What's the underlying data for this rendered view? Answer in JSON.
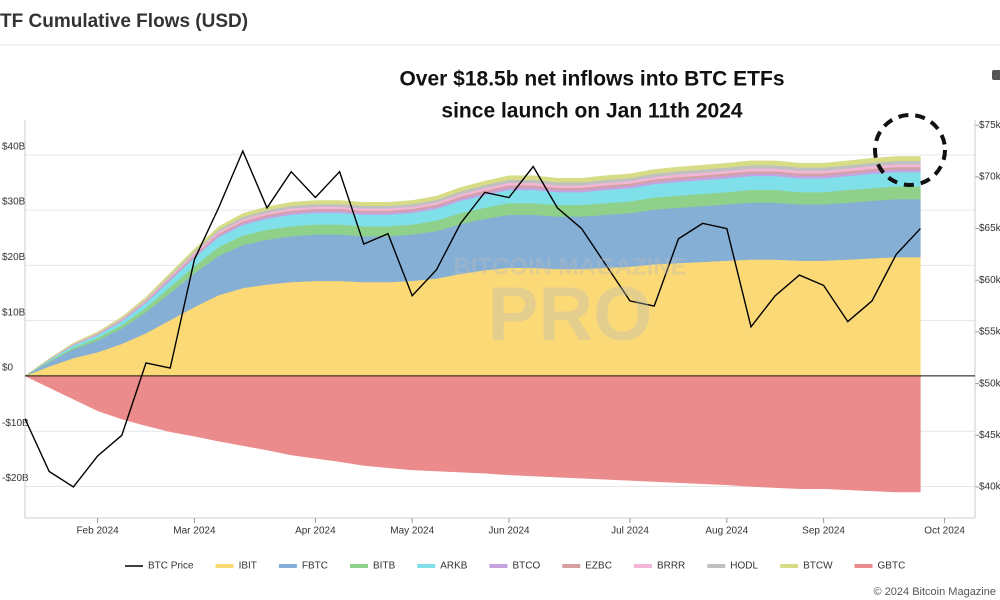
{
  "chart_data": {
    "type": "stacked_area",
    "title": "TF Cumulative Flows (USD)",
    "annotations": [
      "Over $18.5b net inflows into BTC ETFs",
      "since launch on Jan 11th 2024"
    ],
    "watermark": [
      "BITCOIN MAGAZINE",
      "PRO"
    ],
    "footer": "© 2024 Bitcoin Magazine",
    "categories": [
      null,
      null,
      null,
      "Feb 2024",
      null,
      null,
      null,
      "Mar 2024",
      null,
      null,
      null,
      null,
      "Apr 2024",
      null,
      null,
      null,
      "May 2024",
      null,
      null,
      null,
      "Jun 2024",
      null,
      null,
      null,
      null,
      "Jul 2024",
      null,
      null,
      null,
      "Aug 2024",
      null,
      null,
      null,
      "Sep 2024",
      null,
      null,
      null,
      null,
      "Oct 2024"
    ],
    "ylim": [
      -25.7,
      46.3
    ],
    "yticks": [
      {
        "value": -20,
        "label": "-$20B"
      },
      {
        "value": -10,
        "label": "-$10B"
      },
      {
        "value": 0,
        "label": "$0"
      },
      {
        "value": 10,
        "label": "$10B"
      },
      {
        "value": 20,
        "label": "$20B"
      },
      {
        "value": 30,
        "label": "$30B"
      },
      {
        "value": 40,
        "label": "$40B"
      }
    ],
    "y2lim": [
      37000,
      75500
    ],
    "y2ticks": [
      {
        "value": 40000,
        "label": "$40k"
      },
      {
        "value": 45000,
        "label": "$45k"
      },
      {
        "value": 50000,
        "label": "$50k"
      },
      {
        "value": 55000,
        "label": "$55k"
      },
      {
        "value": 60000,
        "label": "$60k"
      },
      {
        "value": 65000,
        "label": "$65k"
      },
      {
        "value": 70000,
        "label": "$70k"
      },
      {
        "value": 75000,
        "label": "$75k"
      }
    ],
    "grid": true,
    "legend": "bottom",
    "series": [
      {
        "name": "BTC Price",
        "color": "#000000",
        "axis": "y2",
        "values": [
          46600,
          41500,
          40000,
          43000,
          45000,
          52000,
          51500,
          62000,
          67000,
          72500,
          67000,
          70500,
          68000,
          70500,
          63500,
          64500,
          58500,
          61000,
          65500,
          68500,
          68000,
          71000,
          67000,
          65000,
          61500,
          58000,
          57500,
          64000,
          65500,
          65000,
          55500,
          58500,
          60500,
          59500,
          56000,
          58000,
          62500,
          65000,
          null
        ]
      },
      {
        "name": "IBIT",
        "color": "#fbd977",
        "values": [
          0,
          1.72,
          3.23,
          4.3,
          5.81,
          7.74,
          10.11,
          12.47,
          14.62,
          15.91,
          16.56,
          16.99,
          17.2,
          17.2,
          16.99,
          16.99,
          17.2,
          17.63,
          18.49,
          19.14,
          19.57,
          19.57,
          19.35,
          19.35,
          19.57,
          19.78,
          20.21,
          20.43,
          20.64,
          20.86,
          21.07,
          21.07,
          20.86,
          20.86,
          21.07,
          21.29,
          21.5,
          21.5,
          null
        ]
      },
      {
        "name": "FBTC",
        "color": "#86afd6",
        "values": [
          0,
          0.8,
          1.6,
          2.1,
          2.8,
          3.8,
          4.9,
          6.1,
          7.1,
          7.8,
          8.1,
          8.3,
          8.4,
          8.4,
          8.3,
          8.3,
          8.4,
          8.6,
          9.0,
          9.3,
          9.6,
          9.6,
          9.5,
          9.5,
          9.6,
          9.7,
          9.9,
          10.0,
          10.1,
          10.2,
          10.3,
          10.3,
          10.2,
          10.2,
          10.3,
          10.4,
          10.5,
          10.5,
          null
        ]
      },
      {
        "name": "BITB",
        "color": "#8fd18a",
        "values": [
          0,
          0.2,
          0.3,
          0.5,
          0.6,
          0.8,
          1.1,
          1.3,
          1.6,
          1.7,
          1.8,
          1.8,
          1.8,
          1.8,
          1.8,
          1.8,
          1.8,
          1.9,
          2.0,
          2.0,
          2.1,
          2.1,
          2.1,
          2.1,
          2.1,
          2.1,
          2.2,
          2.2,
          2.2,
          2.2,
          2.3,
          2.3,
          2.2,
          2.2,
          2.3,
          2.3,
          2.3,
          2.3,
          null
        ]
      },
      {
        "name": "ARKB",
        "color": "#7fe0ea",
        "values": [
          0,
          0.2,
          0.4,
          0.5,
          0.7,
          0.9,
          1.2,
          1.5,
          1.8,
          1.9,
          2.0,
          2.1,
          2.1,
          2.1,
          2.1,
          2.1,
          2.1,
          2.1,
          2.2,
          2.3,
          2.4,
          2.4,
          2.3,
          2.3,
          2.4,
          2.4,
          2.4,
          2.5,
          2.5,
          2.5,
          2.5,
          2.5,
          2.5,
          2.5,
          2.5,
          2.6,
          2.6,
          2.6,
          null
        ]
      },
      {
        "name": "BTCO",
        "color": "#c7a2e0",
        "values": [
          0,
          0.04,
          0.08,
          0.1,
          0.14,
          0.18,
          0.24,
          0.29,
          0.34,
          0.37,
          0.39,
          0.4,
          0.4,
          0.4,
          0.4,
          0.4,
          0.4,
          0.41,
          0.43,
          0.45,
          0.46,
          0.46,
          0.45,
          0.45,
          0.46,
          0.46,
          0.47,
          0.48,
          0.48,
          0.49,
          0.49,
          0.49,
          0.49,
          0.49,
          0.49,
          0.5,
          0.5,
          0.5,
          null
        ]
      },
      {
        "name": "EZBC",
        "color": "#d4a0a0",
        "values": [
          0,
          0.03,
          0.06,
          0.08,
          0.11,
          0.14,
          0.19,
          0.23,
          0.27,
          0.3,
          0.31,
          0.32,
          0.32,
          0.32,
          0.32,
          0.32,
          0.32,
          0.33,
          0.34,
          0.36,
          0.36,
          0.36,
          0.36,
          0.36,
          0.36,
          0.37,
          0.38,
          0.38,
          0.38,
          0.39,
          0.39,
          0.39,
          0.39,
          0.39,
          0.39,
          0.4,
          0.4,
          0.4,
          null
        ]
      },
      {
        "name": "BRRR",
        "color": "#f3b6d8",
        "values": [
          0,
          0.04,
          0.08,
          0.1,
          0.14,
          0.18,
          0.24,
          0.29,
          0.34,
          0.37,
          0.39,
          0.4,
          0.4,
          0.4,
          0.4,
          0.4,
          0.4,
          0.41,
          0.43,
          0.45,
          0.46,
          0.46,
          0.45,
          0.45,
          0.46,
          0.46,
          0.47,
          0.48,
          0.48,
          0.49,
          0.49,
          0.49,
          0.49,
          0.49,
          0.49,
          0.5,
          0.5,
          0.5,
          null
        ]
      },
      {
        "name": "HODL",
        "color": "#c0c0c0",
        "values": [
          0,
          0.05,
          0.09,
          0.12,
          0.16,
          0.22,
          0.28,
          0.35,
          0.41,
          0.44,
          0.46,
          0.47,
          0.48,
          0.48,
          0.47,
          0.47,
          0.48,
          0.49,
          0.52,
          0.53,
          0.55,
          0.55,
          0.54,
          0.54,
          0.55,
          0.55,
          0.56,
          0.57,
          0.58,
          0.58,
          0.59,
          0.59,
          0.58,
          0.58,
          0.59,
          0.59,
          0.6,
          0.6,
          null
        ]
      },
      {
        "name": "BTCW",
        "color": "#d7dc86",
        "values": [
          0,
          0.06,
          0.12,
          0.16,
          0.22,
          0.29,
          0.38,
          0.46,
          0.54,
          0.59,
          0.62,
          0.63,
          0.64,
          0.64,
          0.63,
          0.63,
          0.64,
          0.66,
          0.69,
          0.71,
          0.73,
          0.73,
          0.72,
          0.72,
          0.73,
          0.74,
          0.75,
          0.76,
          0.77,
          0.78,
          0.78,
          0.78,
          0.78,
          0.78,
          0.78,
          0.79,
          0.8,
          0.8,
          null
        ]
      },
      {
        "name": "GBTC",
        "color": "#eb8b8b",
        "values": [
          0,
          -2.1,
          -4.2,
          -6.3,
          -7.8,
          -9.0,
          -10.1,
          -10.9,
          -11.8,
          -12.6,
          -13.4,
          -14.3,
          -14.9,
          -15.5,
          -16.2,
          -16.6,
          -17.0,
          -17.2,
          -17.4,
          -17.6,
          -17.9,
          -18.1,
          -18.3,
          -18.5,
          -18.7,
          -18.9,
          -19.1,
          -19.3,
          -19.5,
          -19.7,
          -20.0,
          -20.2,
          -20.4,
          -20.4,
          -20.6,
          -20.8,
          -21.0,
          -21.0,
          null
        ]
      }
    ]
  }
}
